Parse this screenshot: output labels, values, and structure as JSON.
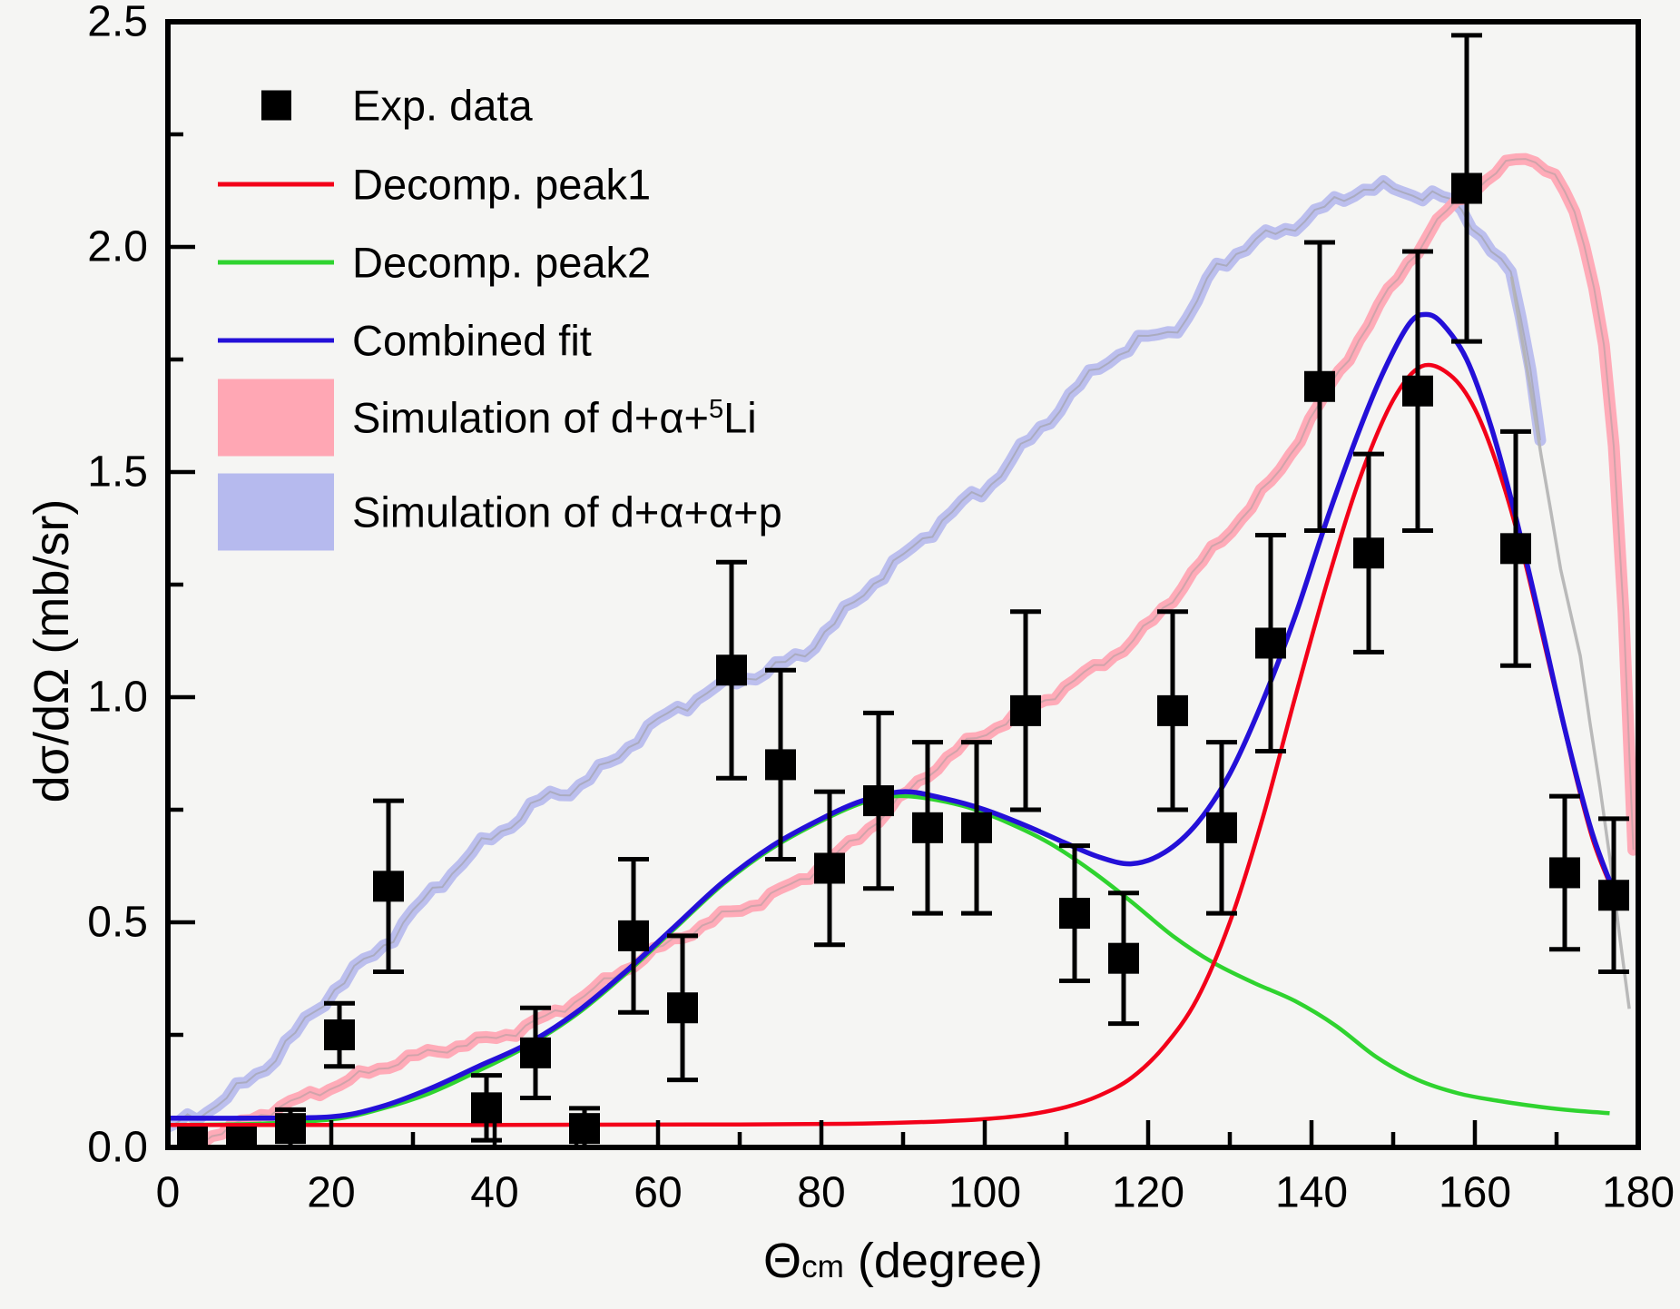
{
  "chart_data": {
    "type": "scatter",
    "title": "",
    "xlabel": {
      "theta": "Θ",
      "sub": "cm",
      "rest": " (degree)"
    },
    "ylabel": "dσ/dΩ (mb/sr)",
    "xlim": [
      0,
      180
    ],
    "ylim": [
      0.0,
      2.5
    ],
    "x_major_ticks": [
      0,
      20,
      40,
      60,
      80,
      100,
      120,
      140,
      160,
      180
    ],
    "x_minor_ticks": [
      10,
      30,
      50,
      70,
      90,
      110,
      130,
      150,
      170
    ],
    "y_major_ticks": [
      0.0,
      0.5,
      1.0,
      1.5,
      2.0,
      2.5
    ],
    "y_major_labels": [
      "0.0",
      "0.5",
      "1.0",
      "1.5",
      "2.0",
      "2.5"
    ],
    "y_minor_ticks": [
      0.25,
      0.75,
      1.25,
      1.75,
      2.25
    ],
    "grid": false,
    "legend_position": "top-left",
    "colors": {
      "background": "#f5f5f3",
      "frame": "#000000",
      "marker": "#000000",
      "peak1": "#f30019",
      "peak2": "#2fd32f",
      "combined": "#2410d8",
      "sim_li5_band": "#ffa7b4",
      "sim_aap_band": "#b6baee",
      "band_centerline": "#9a9a9a",
      "gray_tail": "#b2b2b2"
    },
    "legend": {
      "items": [
        {
          "id": "exp",
          "type": "marker",
          "label": "Exp. data"
        },
        {
          "id": "peak1",
          "type": "line",
          "label": "Decomp. peak1"
        },
        {
          "id": "peak2",
          "type": "line",
          "label": "Decomp. peak2"
        },
        {
          "id": "combined",
          "type": "line",
          "label": "Combined fit"
        },
        {
          "id": "sim_li5",
          "type": "band",
          "pre": "Simulation of d+α+",
          "sup": "5",
          "post": "Li"
        },
        {
          "id": "sim_aap",
          "type": "band",
          "pre": "Simulation of d+α+α+p",
          "sup": "",
          "post": ""
        }
      ]
    },
    "exp_points": [
      {
        "x": 3,
        "y": 0.012,
        "err": 0.0
      },
      {
        "x": 9,
        "y": 0.012,
        "err": 0.0
      },
      {
        "x": 15,
        "y": 0.042,
        "err": 0.042
      },
      {
        "x": 21,
        "y": 0.25,
        "err": 0.07
      },
      {
        "x": 27,
        "y": 0.58,
        "err": 0.19
      },
      {
        "x": 39,
        "y": 0.088,
        "err": 0.072
      },
      {
        "x": 45,
        "y": 0.21,
        "err": 0.1
      },
      {
        "x": 51,
        "y": 0.042,
        "err": 0.045
      },
      {
        "x": 57,
        "y": 0.47,
        "err": 0.17
      },
      {
        "x": 63,
        "y": 0.31,
        "err": 0.16
      },
      {
        "x": 69,
        "y": 1.06,
        "err": 0.24
      },
      {
        "x": 75,
        "y": 0.85,
        "err": 0.21
      },
      {
        "x": 81,
        "y": 0.62,
        "err": 0.17
      },
      {
        "x": 87,
        "y": 0.77,
        "err": 0.195
      },
      {
        "x": 93,
        "y": 0.71,
        "err": 0.19
      },
      {
        "x": 99,
        "y": 0.71,
        "err": 0.19
      },
      {
        "x": 105,
        "y": 0.97,
        "err": 0.22
      },
      {
        "x": 111,
        "y": 0.52,
        "err": 0.15
      },
      {
        "x": 117,
        "y": 0.42,
        "err": 0.145
      },
      {
        "x": 123,
        "y": 0.97,
        "err": 0.22
      },
      {
        "x": 129,
        "y": 0.71,
        "err": 0.19
      },
      {
        "x": 135,
        "y": 1.12,
        "err": 0.24
      },
      {
        "x": 141,
        "y": 1.69,
        "err": 0.32
      },
      {
        "x": 147,
        "y": 1.32,
        "err": 0.22
      },
      {
        "x": 153,
        "y": 1.68,
        "err": 0.31
      },
      {
        "x": 159,
        "y": 2.13,
        "err": 0.34
      },
      {
        "x": 165,
        "y": 1.33,
        "err": 0.26
      },
      {
        "x": 171,
        "y": 0.61,
        "err": 0.17
      },
      {
        "x": 177,
        "y": 0.56,
        "err": 0.17
      }
    ],
    "curves": {
      "peak1": [
        [
          0,
          0.05
        ],
        [
          40,
          0.05
        ],
        [
          70,
          0.051
        ],
        [
          85,
          0.053
        ],
        [
          95,
          0.058
        ],
        [
          100,
          0.063
        ],
        [
          105,
          0.072
        ],
        [
          110,
          0.09
        ],
        [
          114,
          0.115
        ],
        [
          118,
          0.155
        ],
        [
          122,
          0.225
        ],
        [
          126,
          0.33
        ],
        [
          130,
          0.5
        ],
        [
          134,
          0.73
        ],
        [
          138,
          1.0
        ],
        [
          142,
          1.26
        ],
        [
          146,
          1.49
        ],
        [
          150,
          1.66
        ],
        [
          153.5,
          1.735
        ],
        [
          157,
          1.715
        ],
        [
          160,
          1.64
        ],
        [
          163,
          1.5
        ],
        [
          166,
          1.31
        ],
        [
          169,
          1.08
        ],
        [
          172,
          0.85
        ],
        [
          174.5,
          0.68
        ],
        [
          177,
          0.565
        ]
      ],
      "peak2": [
        [
          0,
          0.05
        ],
        [
          10,
          0.052
        ],
        [
          20,
          0.062
        ],
        [
          26,
          0.085
        ],
        [
          32,
          0.12
        ],
        [
          38,
          0.17
        ],
        [
          44,
          0.225
        ],
        [
          50,
          0.295
        ],
        [
          56,
          0.385
        ],
        [
          62,
          0.485
        ],
        [
          68,
          0.585
        ],
        [
          74,
          0.665
        ],
        [
          80,
          0.725
        ],
        [
          85,
          0.765
        ],
        [
          89,
          0.78
        ],
        [
          93,
          0.775
        ],
        [
          98,
          0.755
        ],
        [
          103,
          0.72
        ],
        [
          108,
          0.675
        ],
        [
          113,
          0.615
        ],
        [
          118,
          0.545
        ],
        [
          123,
          0.47
        ],
        [
          128,
          0.41
        ],
        [
          133,
          0.365
        ],
        [
          138,
          0.325
        ],
        [
          143,
          0.27
        ],
        [
          148,
          0.2
        ],
        [
          153,
          0.15
        ],
        [
          158,
          0.12
        ],
        [
          163,
          0.103
        ],
        [
          168,
          0.09
        ],
        [
          172,
          0.082
        ],
        [
          176.5,
          0.076
        ]
      ],
      "combined": [
        [
          0,
          0.065
        ],
        [
          10,
          0.065
        ],
        [
          20,
          0.068
        ],
        [
          26,
          0.09
        ],
        [
          32,
          0.13
        ],
        [
          38,
          0.18
        ],
        [
          44,
          0.23
        ],
        [
          50,
          0.3
        ],
        [
          56,
          0.39
        ],
        [
          62,
          0.49
        ],
        [
          68,
          0.59
        ],
        [
          74,
          0.67
        ],
        [
          80,
          0.73
        ],
        [
          85,
          0.77
        ],
        [
          90,
          0.79
        ],
        [
          95,
          0.775
        ],
        [
          100,
          0.75
        ],
        [
          105,
          0.715
        ],
        [
          110,
          0.675
        ],
        [
          114,
          0.645
        ],
        [
          118,
          0.63
        ],
        [
          122,
          0.655
        ],
        [
          126,
          0.72
        ],
        [
          130,
          0.83
        ],
        [
          134,
          0.99
        ],
        [
          138,
          1.18
        ],
        [
          142,
          1.4
        ],
        [
          146,
          1.6
        ],
        [
          149,
          1.73
        ],
        [
          152,
          1.83
        ],
        [
          154,
          1.85
        ],
        [
          156,
          1.83
        ],
        [
          159,
          1.75
        ],
        [
          162,
          1.6
        ],
        [
          165,
          1.4
        ],
        [
          168,
          1.17
        ],
        [
          171,
          0.93
        ],
        [
          174,
          0.72
        ],
        [
          176,
          0.615
        ],
        [
          177.5,
          0.55
        ]
      ],
      "sim_li5": [
        [
          3,
          0.01
        ],
        [
          8,
          0.045
        ],
        [
          13,
          0.085
        ],
        [
          18,
          0.12
        ],
        [
          23,
          0.155
        ],
        [
          28,
          0.19
        ],
        [
          33,
          0.215
        ],
        [
          38,
          0.235
        ],
        [
          43,
          0.26
        ],
        [
          48,
          0.305
        ],
        [
          53,
          0.36
        ],
        [
          58,
          0.42
        ],
        [
          63,
          0.47
        ],
        [
          68,
          0.515
        ],
        [
          73,
          0.55
        ],
        [
          78,
          0.6
        ],
        [
          83,
          0.665
        ],
        [
          88,
          0.745
        ],
        [
          93,
          0.83
        ],
        [
          98,
          0.9
        ],
        [
          103,
          0.95
        ],
        [
          108,
          1.0
        ],
        [
          113,
          1.06
        ],
        [
          118,
          1.12
        ],
        [
          123,
          1.22
        ],
        [
          128,
          1.33
        ],
        [
          132,
          1.41
        ],
        [
          136,
          1.5
        ],
        [
          140,
          1.62
        ],
        [
          144,
          1.74
        ],
        [
          148,
          1.86
        ],
        [
          152,
          1.97
        ],
        [
          156,
          2.07
        ],
        [
          160,
          2.13
        ],
        [
          163,
          2.17
        ],
        [
          165.5,
          2.2
        ],
        [
          168,
          2.19
        ],
        [
          170.5,
          2.14
        ],
        [
          172.5,
          2.06
        ],
        [
          174.5,
          1.93
        ],
        [
          176,
          1.76
        ],
        [
          177.2,
          1.52
        ],
        [
          178.2,
          1.18
        ],
        [
          179,
          0.82
        ],
        [
          179.6,
          0.57
        ]
      ],
      "sim_aap": [
        [
          0,
          0.04
        ],
        [
          4,
          0.075
        ],
        [
          8,
          0.12
        ],
        [
          12,
          0.18
        ],
        [
          16,
          0.26
        ],
        [
          20,
          0.345
        ],
        [
          24,
          0.41
        ],
        [
          27,
          0.46
        ],
        [
          30,
          0.52
        ],
        [
          34,
          0.6
        ],
        [
          38,
          0.665
        ],
        [
          42,
          0.72
        ],
        [
          46,
          0.775
        ],
        [
          50,
          0.8
        ],
        [
          54,
          0.85
        ],
        [
          58,
          0.92
        ],
        [
          62,
          0.97
        ],
        [
          66,
          1.01
        ],
        [
          70,
          1.04
        ],
        [
          74,
          1.06
        ],
        [
          78,
          1.1
        ],
        [
          82,
          1.17
        ],
        [
          86,
          1.25
        ],
        [
          90,
          1.31
        ],
        [
          94,
          1.38
        ],
        [
          98,
          1.44
        ],
        [
          100,
          1.46
        ],
        [
          103,
          1.52
        ],
        [
          107,
          1.6
        ],
        [
          111,
          1.68
        ],
        [
          115,
          1.75
        ],
        [
          119,
          1.79
        ],
        [
          122,
          1.81
        ],
        [
          125,
          1.84
        ],
        [
          128,
          1.95
        ],
        [
          131,
          1.99
        ],
        [
          134,
          2.02
        ],
        [
          137,
          2.04
        ],
        [
          140,
          2.07
        ],
        [
          143,
          2.1
        ],
        [
          146,
          2.13
        ],
        [
          149,
          2.13
        ],
        [
          152,
          2.12
        ],
        [
          155,
          2.115
        ],
        [
          157,
          2.1
        ],
        [
          159,
          2.07
        ],
        [
          161,
          2.02
        ],
        [
          163,
          1.97
        ],
        [
          164.5,
          1.93
        ],
        [
          166,
          1.82
        ],
        [
          167.5,
          1.65
        ],
        [
          168.5,
          1.52
        ]
      ],
      "sim_aap_tail": [
        [
          164.5,
          1.93
        ],
        [
          166.5,
          1.72
        ],
        [
          168.5,
          1.5
        ],
        [
          170.5,
          1.28
        ],
        [
          172.8,
          1.1
        ],
        [
          174.5,
          0.9
        ],
        [
          176,
          0.72
        ],
        [
          177.5,
          0.5
        ],
        [
          178.8,
          0.32
        ],
        [
          179.6,
          0.17
        ]
      ]
    }
  }
}
